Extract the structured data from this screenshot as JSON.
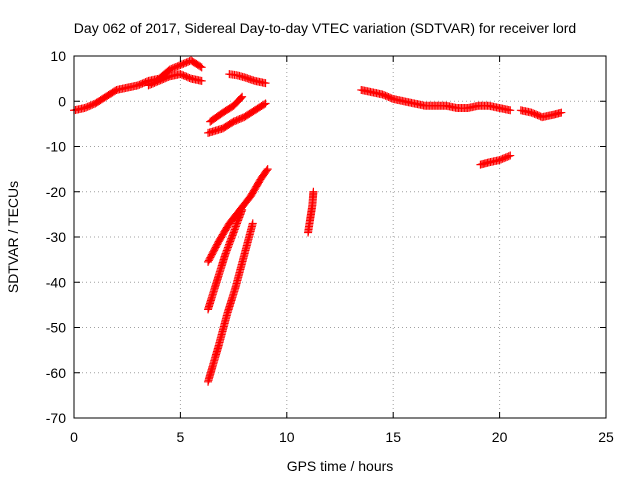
{
  "chart_data": {
    "type": "scatter",
    "title": "Day 062 of 2017, Sidereal Day-to-day VTEC variation (SDTVAR) for receiver lord",
    "xlabel": "GPS time / hours",
    "ylabel": "SDTVAR / TECUs",
    "xlim": [
      0,
      25
    ],
    "ylim": [
      -70,
      10
    ],
    "xticks": [
      "0",
      "5",
      "10",
      "15",
      "20",
      "25"
    ],
    "yticks": [
      "-70",
      "-60",
      "-50",
      "-40",
      "-30",
      "-20",
      "-10",
      "0",
      "10"
    ],
    "grid": true,
    "marker": "plus",
    "color": "#ff0000",
    "series": [
      {
        "points": [
          [
            0,
            -2
          ],
          [
            0.5,
            -1.5
          ],
          [
            1,
            -0.5
          ],
          [
            1.5,
            1
          ],
          [
            2,
            2.5
          ],
          [
            2.5,
            3
          ],
          [
            3,
            3.5
          ],
          [
            3.5,
            4.5
          ],
          [
            4,
            5
          ],
          [
            4.5,
            7
          ],
          [
            5,
            8
          ],
          [
            5.5,
            9
          ],
          [
            6,
            7.5
          ]
        ]
      },
      {
        "points": [
          [
            3.5,
            3.5
          ],
          [
            4,
            4.5
          ],
          [
            4.5,
            5.5
          ],
          [
            5,
            6
          ],
          [
            5.5,
            5
          ],
          [
            6,
            4.5
          ]
        ]
      },
      {
        "points": [
          [
            6.4,
            -4.5
          ],
          [
            7,
            -2.5
          ],
          [
            7.5,
            -1
          ],
          [
            7.9,
            1
          ]
        ]
      },
      {
        "points": [
          [
            6.3,
            -7
          ],
          [
            7,
            -6
          ],
          [
            7.5,
            -4.5
          ],
          [
            8,
            -3.5
          ],
          [
            8.5,
            -2
          ],
          [
            9,
            -0.5
          ]
        ]
      },
      {
        "points": [
          [
            7.3,
            6
          ],
          [
            7.7,
            5.7
          ],
          [
            8,
            5.3
          ],
          [
            8.5,
            4.5
          ],
          [
            9,
            4
          ]
        ]
      },
      {
        "points": [
          [
            6.3,
            -35.5
          ],
          [
            6.8,
            -31
          ],
          [
            7.3,
            -27
          ],
          [
            7.8,
            -24
          ],
          [
            8.3,
            -21
          ],
          [
            8.8,
            -17
          ],
          [
            9.1,
            -15
          ]
        ]
      },
      {
        "points": [
          [
            6.3,
            -46
          ],
          [
            6.7,
            -40
          ],
          [
            7.1,
            -34
          ],
          [
            7.5,
            -29
          ],
          [
            7.9,
            -24
          ]
        ]
      },
      {
        "points": [
          [
            6.3,
            -62
          ],
          [
            6.8,
            -54
          ],
          [
            7.2,
            -47
          ],
          [
            7.6,
            -41
          ],
          [
            8,
            -34
          ],
          [
            8.4,
            -27
          ]
        ]
      },
      {
        "points": [
          [
            11,
            -29
          ],
          [
            11.1,
            -26
          ],
          [
            11.2,
            -23
          ],
          [
            11.25,
            -20
          ]
        ]
      },
      {
        "points": [
          [
            13.5,
            2.5
          ],
          [
            14,
            2
          ],
          [
            14.5,
            1.5
          ],
          [
            15,
            0.5
          ],
          [
            15.5,
            0
          ],
          [
            16,
            -0.5
          ],
          [
            16.5,
            -1
          ],
          [
            17,
            -1
          ],
          [
            17.5,
            -1
          ],
          [
            18,
            -1.5
          ],
          [
            18.5,
            -1.5
          ],
          [
            19,
            -1
          ],
          [
            19.5,
            -1
          ],
          [
            20,
            -1.5
          ],
          [
            20.5,
            -2
          ]
        ]
      },
      {
        "points": [
          [
            21,
            -2
          ],
          [
            21.5,
            -2.5
          ],
          [
            22,
            -3.5
          ],
          [
            22.5,
            -3
          ],
          [
            22.9,
            -2.5
          ]
        ]
      },
      {
        "points": [
          [
            19.1,
            -14
          ],
          [
            19.5,
            -13.5
          ],
          [
            20,
            -13
          ],
          [
            20.5,
            -12
          ]
        ]
      }
    ]
  }
}
